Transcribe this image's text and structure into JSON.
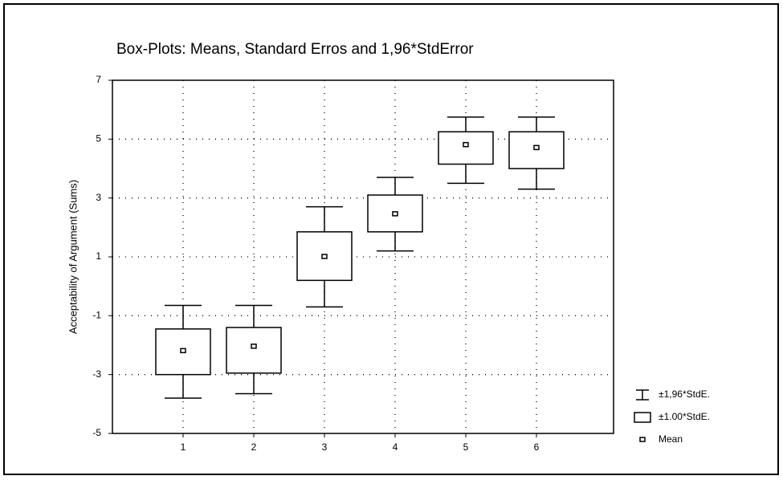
{
  "chart_data": {
    "type": "box",
    "title": "Box-Plots: Means, Standard Erros and 1,96*StdError",
    "y_label": "Acceptability of Argument (Sums)",
    "categories": [
      "1",
      "2",
      "3",
      "4",
      "5",
      "6"
    ],
    "mean": [
      -2.2,
      -2.05,
      1.0,
      2.45,
      4.8,
      4.7
    ],
    "box_low": [
      -3.0,
      -2.95,
      0.2,
      1.85,
      4.15,
      4.0
    ],
    "box_high": [
      -1.45,
      -1.4,
      1.85,
      3.1,
      5.25,
      5.25
    ],
    "whisker_low": [
      -3.8,
      -3.65,
      -0.7,
      1.2,
      3.5,
      3.3
    ],
    "whisker_high": [
      -0.65,
      -0.65,
      2.7,
      3.7,
      5.75,
      5.75
    ],
    "ylim": [
      -5,
      7
    ],
    "yticks": [
      -5,
      -3,
      -1,
      1,
      3,
      5,
      7
    ],
    "grid": true,
    "color": "#000000",
    "legend": [
      "±1,96*StdE.",
      "±1.00*StdE.",
      "Mean"
    ]
  }
}
